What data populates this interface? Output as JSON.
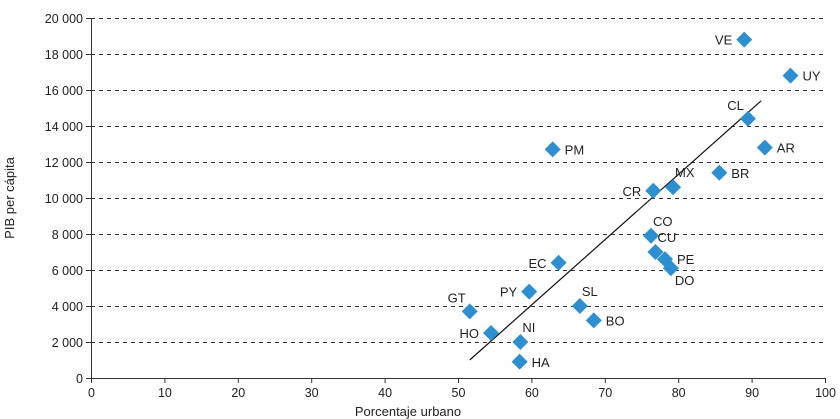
{
  "chart_data": {
    "type": "scatter",
    "xlabel": "Porcentaje urbano",
    "ylabel": "PIB per cápita",
    "xlim": [
      0,
      100
    ],
    "ylim": [
      0,
      20000
    ],
    "x_ticks": [
      0,
      10,
      20,
      30,
      40,
      50,
      60,
      70,
      80,
      90,
      100
    ],
    "x_tick_labels": [
      "0",
      "10",
      "20",
      "30",
      "40",
      "50",
      "60",
      "70",
      "80",
      "90",
      "100"
    ],
    "y_ticks": [
      0,
      2000,
      4000,
      6000,
      8000,
      10000,
      12000,
      14000,
      16000,
      18000,
      20000
    ],
    "y_tick_labels": [
      "0",
      "2 000",
      "4 000",
      "6 000",
      "8 000",
      "10 000",
      "12 000",
      "14 000",
      "16 000",
      "18 000",
      "20 000"
    ],
    "grid": "horizontal-dashed",
    "marker_color": "#2E8FD0",
    "marker": "diamond",
    "points": [
      {
        "label": "VE",
        "x": 89.0,
        "y": 18800,
        "label_pos": "left"
      },
      {
        "label": "UY",
        "x": 95.3,
        "y": 16800,
        "label_pos": "right"
      },
      {
        "label": "CL",
        "x": 89.5,
        "y": 14400,
        "label_pos": "upper-left"
      },
      {
        "label": "AR",
        "x": 91.8,
        "y": 12800,
        "label_pos": "right"
      },
      {
        "label": "PM",
        "x": 62.9,
        "y": 12700,
        "label_pos": "right"
      },
      {
        "label": "BR",
        "x": 85.6,
        "y": 11400,
        "label_pos": "right"
      },
      {
        "label": "MX",
        "x": 79.3,
        "y": 10600,
        "label_pos": "upper-right"
      },
      {
        "label": "CR",
        "x": 76.6,
        "y": 10400,
        "label_pos": "left"
      },
      {
        "label": "CO",
        "x": 76.3,
        "y": 7900,
        "label_pos": "upper-right"
      },
      {
        "label": "CU",
        "x": 76.9,
        "y": 7000,
        "label_pos": "upper-right"
      },
      {
        "label": "PE",
        "x": 78.2,
        "y": 6600,
        "label_pos": "right"
      },
      {
        "label": "DO",
        "x": 79.0,
        "y": 6100,
        "label_pos": "lower-right"
      },
      {
        "label": "EC",
        "x": 63.7,
        "y": 6400,
        "label_pos": "left"
      },
      {
        "label": "PY",
        "x": 59.7,
        "y": 4800,
        "label_pos": "left"
      },
      {
        "label": "GT",
        "x": 51.6,
        "y": 3700,
        "label_pos": "upper-left"
      },
      {
        "label": "SL",
        "x": 66.6,
        "y": 4000,
        "label_pos": "upper-right"
      },
      {
        "label": "BO",
        "x": 68.5,
        "y": 3200,
        "label_pos": "right"
      },
      {
        "label": "HO",
        "x": 54.5,
        "y": 2500,
        "label_pos": "left"
      },
      {
        "label": "NI",
        "x": 58.5,
        "y": 2000,
        "label_pos": "upper-right"
      },
      {
        "label": "HA",
        "x": 58.4,
        "y": 900,
        "label_pos": "right"
      }
    ],
    "trendline": {
      "x": [
        51.6,
        91.3
      ],
      "y": [
        1000,
        15400
      ]
    }
  }
}
